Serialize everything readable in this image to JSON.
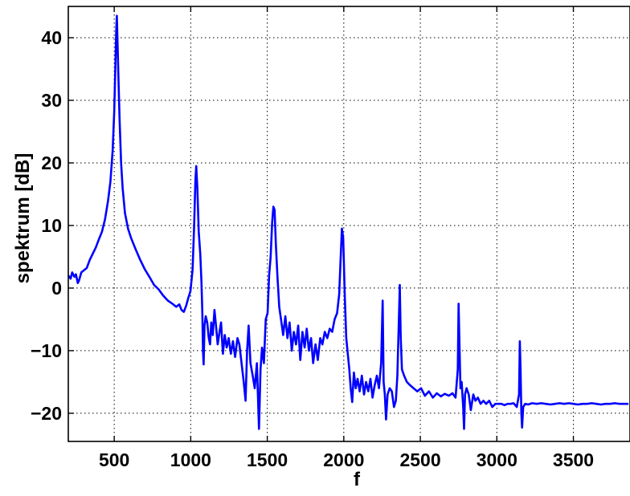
{
  "chart_data": {
    "type": "line",
    "title": "",
    "xlabel": "f",
    "ylabel": "spektrum [dB]",
    "xlim": [
      200,
      3870
    ],
    "ylim": [
      -24.5,
      45
    ],
    "grid": true,
    "x_ticks": [
      500,
      1000,
      1500,
      2000,
      2500,
      3000,
      3500
    ],
    "y_ticks": [
      40,
      30,
      20,
      10,
      0,
      -10,
      -20
    ],
    "x_tick_labels": [
      "500",
      "1000",
      "1500",
      "2000",
      "2500",
      "3000",
      "3500"
    ],
    "y_tick_labels": [
      "40",
      "30",
      "20",
      "10",
      "0",
      "−10",
      "−20"
    ],
    "series": [
      {
        "color": "#0000ff",
        "points": [
          [
            200,
            2
          ],
          [
            215,
            1.5
          ],
          [
            225,
            2.5
          ],
          [
            240,
            1.8
          ],
          [
            250,
            2.2
          ],
          [
            262,
            0.8
          ],
          [
            270,
            1.2
          ],
          [
            285,
            2.5
          ],
          [
            300,
            2.8
          ],
          [
            320,
            3.2
          ],
          [
            340,
            4.5
          ],
          [
            360,
            5.5
          ],
          [
            380,
            6.5
          ],
          [
            400,
            7.8
          ],
          [
            420,
            9
          ],
          [
            440,
            11
          ],
          [
            460,
            14
          ],
          [
            475,
            17
          ],
          [
            490,
            22
          ],
          [
            500,
            28
          ],
          [
            507,
            35
          ],
          [
            513,
            41
          ],
          [
            517,
            43.5
          ],
          [
            521,
            40
          ],
          [
            527,
            34
          ],
          [
            535,
            27
          ],
          [
            545,
            20
          ],
          [
            555,
            16
          ],
          [
            570,
            12
          ],
          [
            590,
            9.5
          ],
          [
            610,
            8
          ],
          [
            640,
            6.2
          ],
          [
            670,
            4.5
          ],
          [
            700,
            3
          ],
          [
            730,
            1.8
          ],
          [
            760,
            0.5
          ],
          [
            790,
            -0.2
          ],
          [
            820,
            -1.2
          ],
          [
            850,
            -2
          ],
          [
            880,
            -2.5
          ],
          [
            905,
            -3
          ],
          [
            925,
            -2.6
          ],
          [
            940,
            -3.5
          ],
          [
            955,
            -3.8
          ],
          [
            970,
            -2.8
          ],
          [
            985,
            -1.5
          ],
          [
            998,
            -0.5
          ],
          [
            1012,
            3
          ],
          [
            1022,
            10
          ],
          [
            1030,
            17
          ],
          [
            1036,
            19.5
          ],
          [
            1043,
            16
          ],
          [
            1052,
            9
          ],
          [
            1062,
            5.5
          ],
          [
            1070,
            1
          ],
          [
            1076,
            -4
          ],
          [
            1080,
            -10
          ],
          [
            1084,
            -12.2
          ],
          [
            1090,
            -6
          ],
          [
            1098,
            -4.5
          ],
          [
            1108,
            -5.5
          ],
          [
            1118,
            -8
          ],
          [
            1126,
            -9
          ],
          [
            1134,
            -5.5
          ],
          [
            1144,
            -7.5
          ],
          [
            1155,
            -3.5
          ],
          [
            1165,
            -6
          ],
          [
            1176,
            -9
          ],
          [
            1188,
            -7
          ],
          [
            1198,
            -5.5
          ],
          [
            1210,
            -10.5
          ],
          [
            1222,
            -7.5
          ],
          [
            1235,
            -9.5
          ],
          [
            1248,
            -8
          ],
          [
            1262,
            -10.5
          ],
          [
            1276,
            -8.5
          ],
          [
            1290,
            -11
          ],
          [
            1305,
            -8
          ],
          [
            1318,
            -9
          ],
          [
            1332,
            -12
          ],
          [
            1346,
            -15
          ],
          [
            1358,
            -18
          ],
          [
            1368,
            -10
          ],
          [
            1378,
            -6
          ],
          [
            1390,
            -12
          ],
          [
            1405,
            -14
          ],
          [
            1418,
            -16
          ],
          [
            1432,
            -12
          ],
          [
            1446,
            -22.5
          ],
          [
            1456,
            -13
          ],
          [
            1466,
            -9.5
          ],
          [
            1478,
            -12
          ],
          [
            1490,
            -5
          ],
          [
            1502,
            -4
          ],
          [
            1512,
            2
          ],
          [
            1522,
            5
          ],
          [
            1532,
            10.5
          ],
          [
            1540,
            13
          ],
          [
            1548,
            12.5
          ],
          [
            1556,
            7
          ],
          [
            1566,
            2
          ],
          [
            1578,
            -3
          ],
          [
            1590,
            -5
          ],
          [
            1604,
            -7.5
          ],
          [
            1618,
            -4.5
          ],
          [
            1632,
            -8
          ],
          [
            1646,
            -5.5
          ],
          [
            1660,
            -10
          ],
          [
            1674,
            -7
          ],
          [
            1688,
            -9
          ],
          [
            1702,
            -6
          ],
          [
            1716,
            -11.5
          ],
          [
            1730,
            -7
          ],
          [
            1744,
            -9.5
          ],
          [
            1758,
            -6.5
          ],
          [
            1772,
            -10
          ],
          [
            1786,
            -8
          ],
          [
            1800,
            -12
          ],
          [
            1815,
            -9
          ],
          [
            1830,
            -11.5
          ],
          [
            1846,
            -8
          ],
          [
            1860,
            -9
          ],
          [
            1876,
            -7
          ],
          [
            1892,
            -8
          ],
          [
            1908,
            -6.5
          ],
          [
            1924,
            -7
          ],
          [
            1940,
            -5
          ],
          [
            1956,
            -4
          ],
          [
            1970,
            -1
          ],
          [
            1980,
            5
          ],
          [
            1988,
            9.5
          ],
          [
            1996,
            8
          ],
          [
            2006,
            -1
          ],
          [
            2016,
            -8
          ],
          [
            2026,
            -10.5
          ],
          [
            2036,
            -13
          ],
          [
            2045,
            -16
          ],
          [
            2055,
            -18.2
          ],
          [
            2066,
            -13.5
          ],
          [
            2078,
            -16
          ],
          [
            2090,
            -14.5
          ],
          [
            2104,
            -16.5
          ],
          [
            2118,
            -14
          ],
          [
            2132,
            -17
          ],
          [
            2146,
            -15
          ],
          [
            2160,
            -16.5
          ],
          [
            2174,
            -14.5
          ],
          [
            2188,
            -17.5
          ],
          [
            2202,
            -15.5
          ],
          [
            2216,
            -14
          ],
          [
            2230,
            -16
          ],
          [
            2244,
            -12
          ],
          [
            2254,
            -2
          ],
          [
            2260,
            -15
          ],
          [
            2268,
            -17
          ],
          [
            2276,
            -21
          ],
          [
            2286,
            -17
          ],
          [
            2300,
            -16
          ],
          [
            2314,
            -16.5
          ],
          [
            2328,
            -19
          ],
          [
            2340,
            -18
          ],
          [
            2350,
            -14
          ],
          [
            2360,
            -5
          ],
          [
            2366,
            0.5
          ],
          [
            2372,
            -8
          ],
          [
            2380,
            -13
          ],
          [
            2394,
            -14
          ],
          [
            2412,
            -15
          ],
          [
            2432,
            -15.5
          ],
          [
            2456,
            -16
          ],
          [
            2480,
            -16.5
          ],
          [
            2505,
            -16
          ],
          [
            2530,
            -17.2
          ],
          [
            2556,
            -16.5
          ],
          [
            2582,
            -17.5
          ],
          [
            2608,
            -16.8
          ],
          [
            2634,
            -17.3
          ],
          [
            2660,
            -16.9
          ],
          [
            2686,
            -17.2
          ],
          [
            2710,
            -16.8
          ],
          [
            2730,
            -17.5
          ],
          [
            2745,
            -13
          ],
          [
            2750,
            -2.5
          ],
          [
            2755,
            -8
          ],
          [
            2762,
            -16
          ],
          [
            2770,
            -15
          ],
          [
            2780,
            -19
          ],
          [
            2786,
            -22.5
          ],
          [
            2792,
            -17
          ],
          [
            2802,
            -16
          ],
          [
            2816,
            -17
          ],
          [
            2830,
            -19.5
          ],
          [
            2846,
            -17
          ],
          [
            2860,
            -18
          ],
          [
            2876,
            -17.5
          ],
          [
            2894,
            -18.5
          ],
          [
            2912,
            -18
          ],
          [
            2930,
            -18.5
          ],
          [
            2950,
            -18
          ],
          [
            2970,
            -19
          ],
          [
            2990,
            -18.5
          ],
          [
            3010,
            -18.5
          ],
          [
            3030,
            -18.5
          ],
          [
            3050,
            -18.7
          ],
          [
            3070,
            -18.5
          ],
          [
            3090,
            -18.5
          ],
          [
            3110,
            -18.4
          ],
          [
            3130,
            -19
          ],
          [
            3145,
            -17
          ],
          [
            3150,
            -8.5
          ],
          [
            3155,
            -13
          ],
          [
            3160,
            -20
          ],
          [
            3165,
            -22.3
          ],
          [
            3172,
            -19
          ],
          [
            3185,
            -18.5
          ],
          [
            3205,
            -18.6
          ],
          [
            3230,
            -18.4
          ],
          [
            3260,
            -18.5
          ],
          [
            3290,
            -18.4
          ],
          [
            3320,
            -18.5
          ],
          [
            3350,
            -18.6
          ],
          [
            3380,
            -18.5
          ],
          [
            3410,
            -18.4
          ],
          [
            3440,
            -18.5
          ],
          [
            3470,
            -18.4
          ],
          [
            3500,
            -18.5
          ],
          [
            3530,
            -18.6
          ],
          [
            3560,
            -18.5
          ],
          [
            3590,
            -18.5
          ],
          [
            3620,
            -18.4
          ],
          [
            3650,
            -18.5
          ],
          [
            3680,
            -18.6
          ],
          [
            3710,
            -18.5
          ],
          [
            3740,
            -18.5
          ],
          [
            3770,
            -18.4
          ],
          [
            3800,
            -18.5
          ],
          [
            3830,
            -18.5
          ],
          [
            3860,
            -18.5
          ]
        ]
      }
    ]
  }
}
